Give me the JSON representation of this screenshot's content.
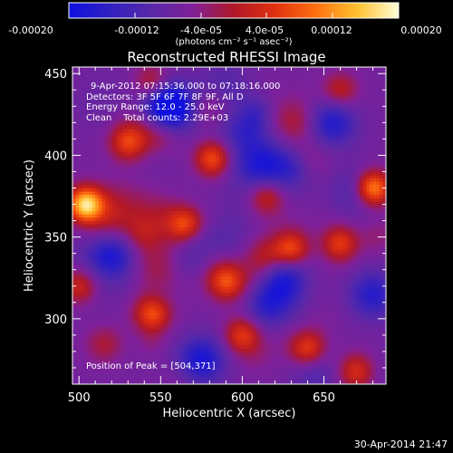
{
  "colorbar": {
    "tick_labels": [
      "-0.00020",
      "-0.00012",
      "-4.0e-05",
      "4.0e-05",
      "0.00012",
      "0.00020"
    ],
    "unit_label": "(photons cm⁻² s⁻¹ asec⁻²)",
    "range": [
      -0.0002,
      0.0002
    ],
    "colormap": [
      "#1010e0",
      "#3020c0",
      "#5828a8",
      "#802098",
      "#b01828",
      "#e03010",
      "#ff7010",
      "#ffc030",
      "#ffffd8"
    ]
  },
  "chart_data": {
    "type": "heatmap",
    "title": "Reconstructed RHESSI Image",
    "xlabel": "Heliocentric X (arcsec)",
    "ylabel": "Heliocentric Y (arcsec)",
    "xlim": [
      496,
      688
    ],
    "ylim": [
      260,
      454
    ],
    "x_ticks": [
      500,
      550,
      600,
      650
    ],
    "y_ticks": [
      300,
      350,
      400,
      450
    ],
    "annotations": [
      "9-Apr-2012 07:15:36.000 to 07:18:16.000",
      "Detectors: 3F 5F 6F 7F 8F 9F, All D",
      "Energy Range: 12.0 - 25.0 keV",
      "Clean    Total counts: 2.29E+03"
    ],
    "peak_label": "Position of Peak = [504,371]",
    "peak_position": [
      504,
      371
    ],
    "hot_spots": [
      {
        "x": 504,
        "y": 370,
        "intensity": 1.0
      },
      {
        "x": 680,
        "y": 380,
        "intensity": 0.85
      },
      {
        "x": 582,
        "y": 398,
        "intensity": 0.6
      },
      {
        "x": 530,
        "y": 408,
        "intensity": 0.45
      },
      {
        "x": 565,
        "y": 358,
        "intensity": 0.55
      },
      {
        "x": 630,
        "y": 343,
        "intensity": 0.55
      },
      {
        "x": 660,
        "y": 346,
        "intensity": 0.5
      },
      {
        "x": 590,
        "y": 323,
        "intensity": 0.5
      },
      {
        "x": 545,
        "y": 303,
        "intensity": 0.55
      },
      {
        "x": 515,
        "y": 285,
        "intensity": 0.45
      },
      {
        "x": 600,
        "y": 290,
        "intensity": 0.5
      },
      {
        "x": 640,
        "y": 282,
        "intensity": 0.5
      },
      {
        "x": 670,
        "y": 268,
        "intensity": 0.45
      },
      {
        "x": 615,
        "y": 375,
        "intensity": 0.4
      },
      {
        "x": 545,
        "y": 445,
        "intensity": 0.35
      },
      {
        "x": 660,
        "y": 440,
        "intensity": 0.35
      },
      {
        "x": 500,
        "y": 320,
        "intensity": 0.4
      }
    ],
    "cold_spots": [
      {
        "x": 555,
        "y": 430,
        "intensity": 0.9
      },
      {
        "x": 600,
        "y": 420,
        "intensity": 0.6
      },
      {
        "x": 520,
        "y": 340,
        "intensity": 0.6
      },
      {
        "x": 625,
        "y": 325,
        "intensity": 0.7
      },
      {
        "x": 575,
        "y": 275,
        "intensity": 0.6
      },
      {
        "x": 680,
        "y": 315,
        "intensity": 0.5
      },
      {
        "x": 655,
        "y": 420,
        "intensity": 0.55
      },
      {
        "x": 615,
        "y": 310,
        "intensity": 0.6
      }
    ]
  },
  "timestamp": "30-Apr-2014 21:47"
}
